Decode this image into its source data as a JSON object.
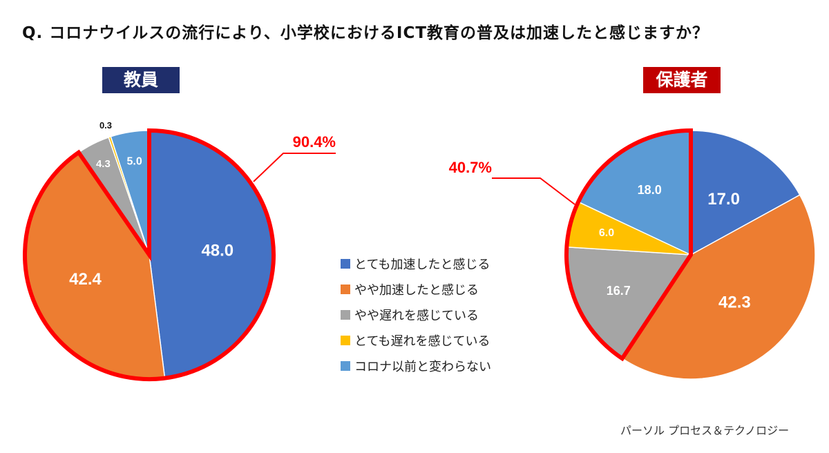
{
  "question": "Q. コロナウイルスの流行により、小学校におけるICT教育の普及は加速したと感じますか？",
  "source": "パーソル プロセス＆テクノロジー",
  "colors": {
    "highlight": "#ff0000",
    "teachers_badge": "#1f2e6b",
    "parents_badge": "#c00000"
  },
  "legend": [
    {
      "label": "とても加速したと感じる",
      "color": "#4472c4"
    },
    {
      "label": "やや加速したと感じる",
      "color": "#ed7d31"
    },
    {
      "label": " やや遅れを感じている",
      "color": "#a5a5a5"
    },
    {
      "label": "とても遅れを感じている",
      "color": "#ffc000"
    },
    {
      "label": "コロナ以前と変わらない",
      "color": "#5b9bd5"
    }
  ],
  "chart_data": [
    {
      "type": "pie",
      "title": "教員",
      "categories": [
        "とても加速したと感じる",
        "やや加速したと感じる",
        "やや遅れを感じている",
        "とても遅れを感じている",
        "コロナ以前と変わらない"
      ],
      "values": [
        48.0,
        42.4,
        4.3,
        0.3,
        5.0
      ],
      "data_labels": [
        "48.0",
        "42.4",
        "4.3",
        "0.3",
        "5.0"
      ],
      "highlight_label": "90.4%",
      "highlight_categories": [
        "とても加速したと感じる",
        "やや加速したと感じる"
      ]
    },
    {
      "type": "pie",
      "title": "保護者",
      "categories": [
        "とても加速したと感じる",
        "やや加速したと感じる",
        "やや遅れを感じている",
        "とても遅れを感じている",
        "コロナ以前と変わらない"
      ],
      "values": [
        17.0,
        42.3,
        16.7,
        6.0,
        18.0
      ],
      "data_labels": [
        "17.0",
        "42.3",
        "16.7",
        "6.0",
        "18.0"
      ],
      "highlight_label": "40.7%",
      "highlight_categories": [
        "やや遅れを感じている",
        "とても遅れを感じている",
        "コロナ以前と変わらない"
      ]
    }
  ]
}
